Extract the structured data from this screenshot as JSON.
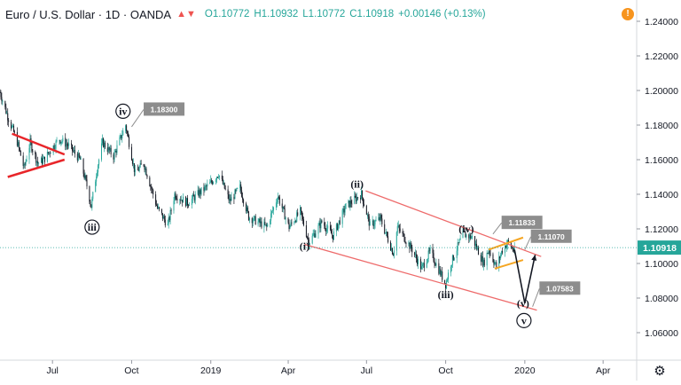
{
  "header": {
    "symbol_title": "Euro / U.S. Dollar · 1D · OANDA",
    "open": "O1.10772",
    "high": "H1.10932",
    "low": "L1.10772",
    "close": "C1.10918",
    "change": "+0.00146 (+0.13%)"
  },
  "colors": {
    "up_candle": "#26a69a",
    "down_candle": "#131722",
    "triangle": "#e8262a",
    "channel": "#ee6b6b",
    "small_channel": "#f5a623",
    "projection": "#131722",
    "price_label_bg": "#26a69a",
    "callout_bg": "#8d8d8d"
  },
  "icons": {
    "symbol": "chart-icon",
    "warning": "warning-icon",
    "settings": "gear-icon"
  },
  "chart_data": {
    "type": "candlestick",
    "title": "Euro / U.S. Dollar · 1D · OANDA",
    "y_ticks": [
      "1.24000",
      "1.22000",
      "1.20000",
      "1.18000",
      "1.16000",
      "1.14000",
      "1.12000",
      "1.10000",
      "1.08000",
      "1.06000"
    ],
    "ylim": [
      1.05,
      1.25
    ],
    "x_ticks": [
      "Jul",
      "Oct",
      "2019",
      "Apr",
      "Jul",
      "Oct",
      "2020",
      "Apr"
    ],
    "x_tick_dates": [
      "2018-07-01",
      "2018-10-01",
      "2019-01-01",
      "2019-04-01",
      "2019-07-01",
      "2019-10-01",
      "2020-01-01",
      "2020-04-01"
    ],
    "xlim": [
      "2018-05-01",
      "2020-05-10"
    ],
    "current_price": "1.10918",
    "trend_points": [
      [
        "2018-05-01",
        1.199
      ],
      [
        "2018-05-10",
        1.185
      ],
      [
        "2018-05-20",
        1.172
      ],
      [
        "2018-05-29",
        1.155
      ],
      [
        "2018-06-05",
        1.17
      ],
      [
        "2018-06-14",
        1.158
      ],
      [
        "2018-06-21",
        1.16
      ],
      [
        "2018-06-28",
        1.165
      ],
      [
        "2018-07-09",
        1.172
      ],
      [
        "2018-07-20",
        1.168
      ],
      [
        "2018-08-02",
        1.16
      ],
      [
        "2018-08-10",
        1.145
      ],
      [
        "2018-08-15",
        1.133
      ],
      [
        "2018-08-22",
        1.155
      ],
      [
        "2018-08-28",
        1.17
      ],
      [
        "2018-09-10",
        1.162
      ],
      [
        "2018-09-24",
        1.18
      ],
      [
        "2018-10-05",
        1.152
      ],
      [
        "2018-10-15",
        1.158
      ],
      [
        "2018-10-31",
        1.132
      ],
      [
        "2018-11-12",
        1.122
      ],
      [
        "2018-11-20",
        1.14
      ],
      [
        "2018-12-05",
        1.135
      ],
      [
        "2018-12-31",
        1.146
      ],
      [
        "2019-01-10",
        1.152
      ],
      [
        "2019-01-23",
        1.136
      ],
      [
        "2019-02-04",
        1.144
      ],
      [
        "2019-02-14",
        1.127
      ],
      [
        "2019-03-07",
        1.121
      ],
      [
        "2019-03-20",
        1.139
      ],
      [
        "2019-04-02",
        1.121
      ],
      [
        "2019-04-15",
        1.13
      ],
      [
        "2019-04-25",
        1.112
      ],
      [
        "2019-05-10",
        1.124
      ],
      [
        "2019-05-23",
        1.116
      ],
      [
        "2019-06-07",
        1.133
      ],
      [
        "2019-06-25",
        1.14
      ],
      [
        "2019-07-05",
        1.122
      ],
      [
        "2019-07-17",
        1.126
      ],
      [
        "2019-08-01",
        1.106
      ],
      [
        "2019-08-06",
        1.121
      ],
      [
        "2019-08-23",
        1.108
      ],
      [
        "2019-09-03",
        1.097
      ],
      [
        "2019-09-13",
        1.107
      ],
      [
        "2019-10-01",
        1.088
      ],
      [
        "2019-10-07",
        1.1
      ],
      [
        "2019-10-21",
        1.117
      ],
      [
        "2019-11-01",
        1.115
      ],
      [
        "2019-11-14",
        1.1
      ],
      [
        "2019-11-20",
        1.108
      ],
      [
        "2019-11-29",
        1.098
      ],
      [
        "2019-12-06",
        1.108
      ],
      [
        "2019-12-12",
        1.112
      ],
      [
        "2019-12-20",
        1.107
      ]
    ],
    "drawings": {
      "triangle": [
        {
          "from": [
            "2018-05-15",
            1.175
          ],
          "to": [
            "2018-07-15",
            1.163
          ]
        },
        {
          "from": [
            "2018-05-10",
            1.15
          ],
          "to": [
            "2018-07-15",
            1.16
          ]
        }
      ],
      "channel": [
        {
          "from": [
            "2019-06-30",
            1.142
          ],
          "to": [
            "2020-01-20",
            1.104
          ]
        },
        {
          "from": [
            "2019-04-20",
            1.111
          ],
          "to": [
            "2020-01-15",
            1.073
          ]
        }
      ],
      "small_channel": [
        {
          "from": [
            "2019-11-20",
            1.108
          ],
          "to": [
            "2019-12-30",
            1.115
          ]
        },
        {
          "from": [
            "2019-11-27",
            1.097
          ],
          "to": [
            "2019-12-30",
            1.102
          ]
        }
      ],
      "projection": [
        [
          "2019-12-20",
          1.108
        ],
        [
          "2020-01-01",
          1.077
        ],
        [
          "2020-01-13",
          1.105
        ]
      ]
    },
    "annotations": [
      {
        "label": "iii",
        "circled": true,
        "date": "2018-08-16",
        "price": 1.121
      },
      {
        "label": "iv",
        "circled": true,
        "date": "2018-09-21",
        "price": 1.188
      },
      {
        "label": "(i)",
        "circled": false,
        "date": "2019-04-20",
        "price": 1.11
      },
      {
        "label": "(ii)",
        "circled": false,
        "date": "2019-06-20",
        "price": 1.146
      },
      {
        "label": "(iii)",
        "circled": false,
        "date": "2019-10-01",
        "price": 1.082
      },
      {
        "label": "(iv)",
        "circled": false,
        "date": "2019-10-25",
        "price": 1.12
      },
      {
        "label": "(v)",
        "circled": false,
        "date": "2019-12-30",
        "price": 1.077
      },
      {
        "label": "v",
        "circled": true,
        "date": "2019-12-31",
        "price": 1.067
      }
    ],
    "callouts": [
      {
        "text": "1.18300",
        "anchor": [
          "2018-10-01",
          1.179
        ],
        "box": [
          "2018-10-15",
          1.189
        ]
      },
      {
        "text": "1.11833",
        "anchor": [
          "2019-11-25",
          1.117
        ],
        "box": [
          "2019-12-05",
          1.1235
        ]
      },
      {
        "text": "1.11070",
        "anchor": [
          "2020-01-01",
          1.108
        ],
        "box": [
          "2020-01-08",
          1.1155
        ]
      },
      {
        "text": "1.07583",
        "anchor": [
          "2020-01-10",
          1.075
        ],
        "box": [
          "2020-01-18",
          1.0855
        ]
      }
    ]
  }
}
